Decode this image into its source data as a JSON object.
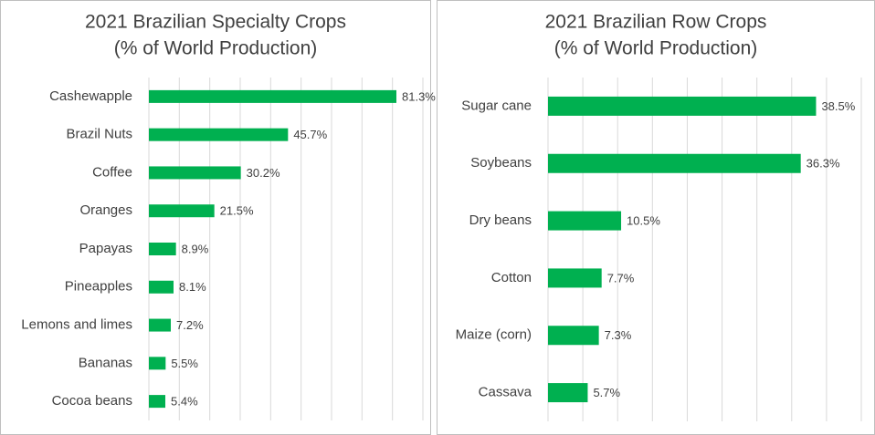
{
  "chart_data": [
    {
      "type": "bar",
      "orientation": "horizontal",
      "title": "2021 Brazilian Specialty Crops",
      "subtitle": "(% of World Production)",
      "categories": [
        "Cashewapple",
        "Brazil Nuts",
        "Coffee",
        "Oranges",
        "Papayas",
        "Pineapples",
        "Lemons and limes",
        "Bananas",
        "Cocoa beans"
      ],
      "values": [
        81.3,
        45.7,
        30.2,
        21.5,
        8.9,
        8.1,
        7.2,
        5.5,
        5.4
      ],
      "value_labels": [
        "81.3%",
        "45.7%",
        "30.2%",
        "21.5%",
        "8.9%",
        "8.1%",
        "7.2%",
        "5.5%",
        "5.4%"
      ],
      "color": "#00b050",
      "xlim": [
        0,
        90
      ],
      "xticks": [
        0,
        10,
        20,
        30,
        40,
        50,
        60,
        70,
        80,
        90
      ],
      "grid": true
    },
    {
      "type": "bar",
      "orientation": "horizontal",
      "title": "2021 Brazilian Row Crops",
      "subtitle": "(% of World Production)",
      "categories": [
        "Sugar cane",
        "Soybeans",
        "Dry beans",
        "Cotton",
        "Maize (corn)",
        "Cassava"
      ],
      "values": [
        38.5,
        36.3,
        10.5,
        7.7,
        7.3,
        5.7
      ],
      "value_labels": [
        "38.5%",
        "36.3%",
        "10.5%",
        "7.7%",
        "7.3%",
        "5.7%"
      ],
      "color": "#00b050",
      "xlim": [
        0,
        45
      ],
      "xticks": [
        0,
        5,
        10,
        15,
        20,
        25,
        30,
        35,
        40,
        45
      ],
      "grid": true
    }
  ]
}
